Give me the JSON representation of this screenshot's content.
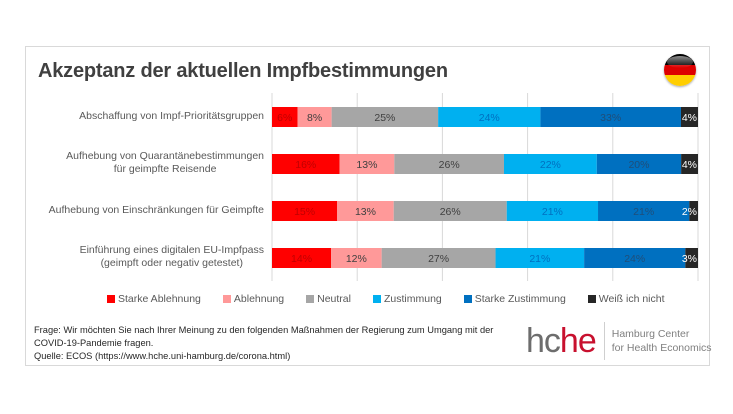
{
  "header": {
    "title": "Akzeptanz der aktuellen Impfbestimmungen",
    "flag_icon": "germany-flag-icon",
    "flag_colors": [
      "#000000",
      "#dd0000",
      "#ffce00"
    ]
  },
  "chart_data": {
    "type": "bar",
    "orientation": "horizontal",
    "stacked": "100%",
    "title": "Akzeptanz der aktuellen Impfbestimmungen",
    "xlabel": "",
    "ylabel": "",
    "xlim": [
      0,
      100
    ],
    "grid": true,
    "gridlines_at": [
      0,
      20,
      40,
      60,
      80,
      100
    ],
    "legend_position": "bottom",
    "categories": [
      [
        "Abschaffung von Impf-Prioritätsgruppen"
      ],
      [
        "Aufhebung von Quarantänebestimmungen",
        "für geimpfte Reisende"
      ],
      [
        "Aufhebung von Einschränkungen für Geimpfte"
      ],
      [
        "Einführung eines digitalen EU-Impfpass",
        "(geimpft oder negativ getestet)"
      ]
    ],
    "series": [
      {
        "name": "Starke Ablehnung",
        "color": "#ff0000",
        "label_color": "#c00000",
        "values": [
          6,
          16,
          15,
          14
        ]
      },
      {
        "name": "Ablehnung",
        "color": "#ff9999",
        "label_color": "#404040",
        "values": [
          8,
          13,
          13,
          12
        ]
      },
      {
        "name": "Neutral",
        "color": "#a6a6a6",
        "label_color": "#404040",
        "values": [
          25,
          26,
          26,
          27
        ]
      },
      {
        "name": "Zustimmung",
        "color": "#00b0f0",
        "label_color": "#0070c0",
        "values": [
          24,
          22,
          21,
          21
        ]
      },
      {
        "name": "Starke Zustimmung",
        "color": "#0070c0",
        "label_color": "#1f4e79",
        "values": [
          33,
          20,
          21,
          24
        ]
      },
      {
        "name": "Weiß ich nicht",
        "color": "#262626",
        "label_color": "#ffffff",
        "values": [
          4,
          4,
          2,
          3
        ]
      }
    ],
    "value_suffix": "%"
  },
  "footnote": {
    "lines": [
      "Frage: Wir möchten Sie nach Ihrer Meinung zu den folgenden Maßnahmen der Regierung zum Umgang mit der",
      "COVID-19-Pandemie fragen.",
      "Quelle: ECOS (https://www.hche.uni-hamburg.de/corona.html)"
    ]
  },
  "logo": {
    "mark_part1": "hc",
    "mark_part2": "he",
    "text_line1": "Hamburg Center",
    "text_line2": "for Health Economics"
  }
}
